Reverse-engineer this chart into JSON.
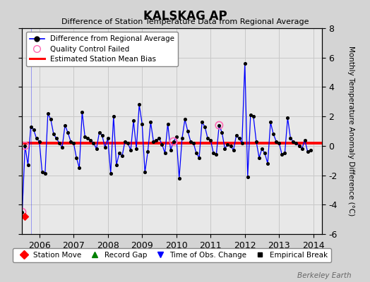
{
  "title": "KALSKAG AP",
  "subtitle": "Difference of Station Temperature Data from Regional Average",
  "ylabel": "Monthly Temperature Anomaly Difference (°C)",
  "ylim": [
    -6,
    8
  ],
  "xlim": [
    2005.5,
    2014.25
  ],
  "yticks": [
    -6,
    -4,
    -2,
    0,
    2,
    4,
    6,
    8
  ],
  "ytick_labels": [
    "-6",
    "-4",
    "-2",
    "0",
    "2",
    "4",
    "6",
    "8"
  ],
  "xticks": [
    2006,
    2007,
    2008,
    2009,
    2010,
    2011,
    2012,
    2013,
    2014
  ],
  "bias_value": 0.2,
  "fig_bg_color": "#d4d4d4",
  "plot_bg_color": "#e8e8e8",
  "line_color": "#0000ff",
  "bias_color": "#ff0000",
  "marker_color": "#000000",
  "qc_color": "#ff69b4",
  "grid_color": "#c8c8c8",
  "watermark": "Berkeley Earth",
  "time_series": [
    [
      2005.5,
      -4.5
    ],
    [
      2005.583,
      0.0
    ],
    [
      2005.667,
      -1.3
    ],
    [
      2005.75,
      1.3
    ],
    [
      2005.833,
      1.1
    ],
    [
      2005.917,
      0.5
    ],
    [
      2006.0,
      0.3
    ],
    [
      2006.083,
      -1.8
    ],
    [
      2006.167,
      -1.9
    ],
    [
      2006.25,
      2.2
    ],
    [
      2006.333,
      1.8
    ],
    [
      2006.417,
      0.8
    ],
    [
      2006.5,
      0.5
    ],
    [
      2006.583,
      0.2
    ],
    [
      2006.667,
      -0.1
    ],
    [
      2006.75,
      1.4
    ],
    [
      2006.833,
      0.9
    ],
    [
      2006.917,
      0.3
    ],
    [
      2007.0,
      0.2
    ],
    [
      2007.083,
      -0.8
    ],
    [
      2007.167,
      -1.5
    ],
    [
      2007.25,
      2.3
    ],
    [
      2007.333,
      0.6
    ],
    [
      2007.417,
      0.5
    ],
    [
      2007.5,
      0.4
    ],
    [
      2007.583,
      0.2
    ],
    [
      2007.667,
      -0.2
    ],
    [
      2007.75,
      0.9
    ],
    [
      2007.833,
      0.7
    ],
    [
      2007.917,
      -0.1
    ],
    [
      2008.0,
      0.5
    ],
    [
      2008.083,
      -1.9
    ],
    [
      2008.167,
      2.0
    ],
    [
      2008.25,
      -1.3
    ],
    [
      2008.333,
      -0.5
    ],
    [
      2008.417,
      -0.7
    ],
    [
      2008.5,
      0.3
    ],
    [
      2008.583,
      0.2
    ],
    [
      2008.667,
      -0.3
    ],
    [
      2008.75,
      1.7
    ],
    [
      2008.833,
      -0.2
    ],
    [
      2008.917,
      2.8
    ],
    [
      2009.0,
      1.5
    ],
    [
      2009.083,
      -1.8
    ],
    [
      2009.167,
      -0.4
    ],
    [
      2009.25,
      1.6
    ],
    [
      2009.333,
      0.3
    ],
    [
      2009.417,
      0.4
    ],
    [
      2009.5,
      0.5
    ],
    [
      2009.583,
      0.1
    ],
    [
      2009.667,
      -0.5
    ],
    [
      2009.75,
      1.5
    ],
    [
      2009.833,
      -0.3
    ],
    [
      2009.917,
      0.3
    ],
    [
      2010.0,
      0.6
    ],
    [
      2010.083,
      -2.2
    ],
    [
      2010.167,
      0.5
    ],
    [
      2010.25,
      1.8
    ],
    [
      2010.333,
      1.0
    ],
    [
      2010.417,
      0.3
    ],
    [
      2010.5,
      0.2
    ],
    [
      2010.583,
      -0.5
    ],
    [
      2010.667,
      -0.8
    ],
    [
      2010.75,
      1.6
    ],
    [
      2010.833,
      1.3
    ],
    [
      2010.917,
      0.5
    ],
    [
      2011.0,
      0.4
    ],
    [
      2011.083,
      -0.5
    ],
    [
      2011.167,
      -0.6
    ],
    [
      2011.25,
      1.4
    ],
    [
      2011.333,
      0.9
    ],
    [
      2011.417,
      -0.2
    ],
    [
      2011.5,
      0.1
    ],
    [
      2011.583,
      0.0
    ],
    [
      2011.667,
      -0.3
    ],
    [
      2011.75,
      0.7
    ],
    [
      2011.833,
      0.5
    ],
    [
      2011.917,
      0.2
    ],
    [
      2012.0,
      5.6
    ],
    [
      2012.083,
      -2.1
    ],
    [
      2012.167,
      2.1
    ],
    [
      2012.25,
      2.0
    ],
    [
      2012.333,
      0.3
    ],
    [
      2012.417,
      -0.8
    ],
    [
      2012.5,
      -0.2
    ],
    [
      2012.583,
      -0.5
    ],
    [
      2012.667,
      -1.2
    ],
    [
      2012.75,
      1.6
    ],
    [
      2012.833,
      0.8
    ],
    [
      2012.917,
      0.3
    ],
    [
      2013.0,
      0.2
    ],
    [
      2013.083,
      -0.6
    ],
    [
      2013.167,
      -0.5
    ],
    [
      2013.25,
      1.9
    ],
    [
      2013.333,
      0.5
    ],
    [
      2013.417,
      0.3
    ],
    [
      2013.5,
      0.2
    ],
    [
      2013.583,
      0.0
    ],
    [
      2013.667,
      -0.2
    ],
    [
      2013.75,
      0.4
    ],
    [
      2013.833,
      -0.4
    ],
    [
      2013.917,
      -0.3
    ]
  ],
  "qc_failed_points": [
    [
      2005.5,
      -4.5
    ],
    [
      2005.583,
      0.0
    ],
    [
      2009.917,
      0.3
    ],
    [
      2011.25,
      1.4
    ]
  ],
  "station_move": [
    [
      2005.583,
      -4.8
    ]
  ],
  "gap_segment": [
    [
      2005.667,
      2006.0
    ]
  ],
  "vertical_line_x": 2005.75
}
